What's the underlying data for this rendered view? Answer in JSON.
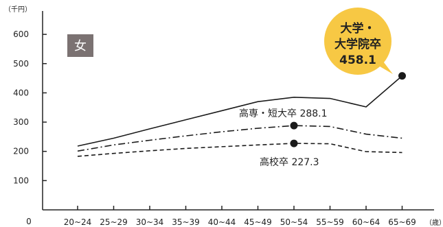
{
  "chart_data": {
    "type": "line",
    "ylabel": "（千円）",
    "xunit": "（歳）",
    "gender_label": "女",
    "categories": [
      "20~24",
      "25~29",
      "30~34",
      "35~39",
      "40~44",
      "45~49",
      "50~54",
      "55~59",
      "60~64",
      "65~69"
    ],
    "y_ticks": [
      0,
      100,
      200,
      300,
      400,
      500,
      600
    ],
    "ylim": [
      0,
      680
    ],
    "grid": false,
    "series": [
      {
        "name": "大学・大学院卒",
        "style": "solid",
        "color": "#1a1a1a",
        "values": [
          218,
          245,
          277,
          308,
          339,
          370,
          385,
          381,
          352,
          458.1
        ]
      },
      {
        "name": "高専・短大卒",
        "style": "dashdot",
        "color": "#1a1a1a",
        "values": [
          201,
          222,
          238,
          253,
          267,
          279,
          288.1,
          285,
          259,
          245
        ]
      },
      {
        "name": "高校卒",
        "style": "dashed",
        "color": "#1a1a1a",
        "values": [
          183,
          193,
          202,
          210,
          216,
          222,
          227.3,
          226,
          199,
          196
        ]
      }
    ],
    "markers": [
      {
        "series": 0,
        "index": 9
      },
      {
        "series": 1,
        "index": 6
      },
      {
        "series": 2,
        "index": 6
      }
    ],
    "annotations": {
      "university_line1": "大学・",
      "university_line2": "大学院卒",
      "university_value": "458.1",
      "junior_college": "高専・短大卒 288.1",
      "high_school": "高校卒 227.3"
    },
    "colors": {
      "callout_fill": "#f7c844",
      "gender_box": "#7b7272",
      "axis": "#222222"
    }
  }
}
